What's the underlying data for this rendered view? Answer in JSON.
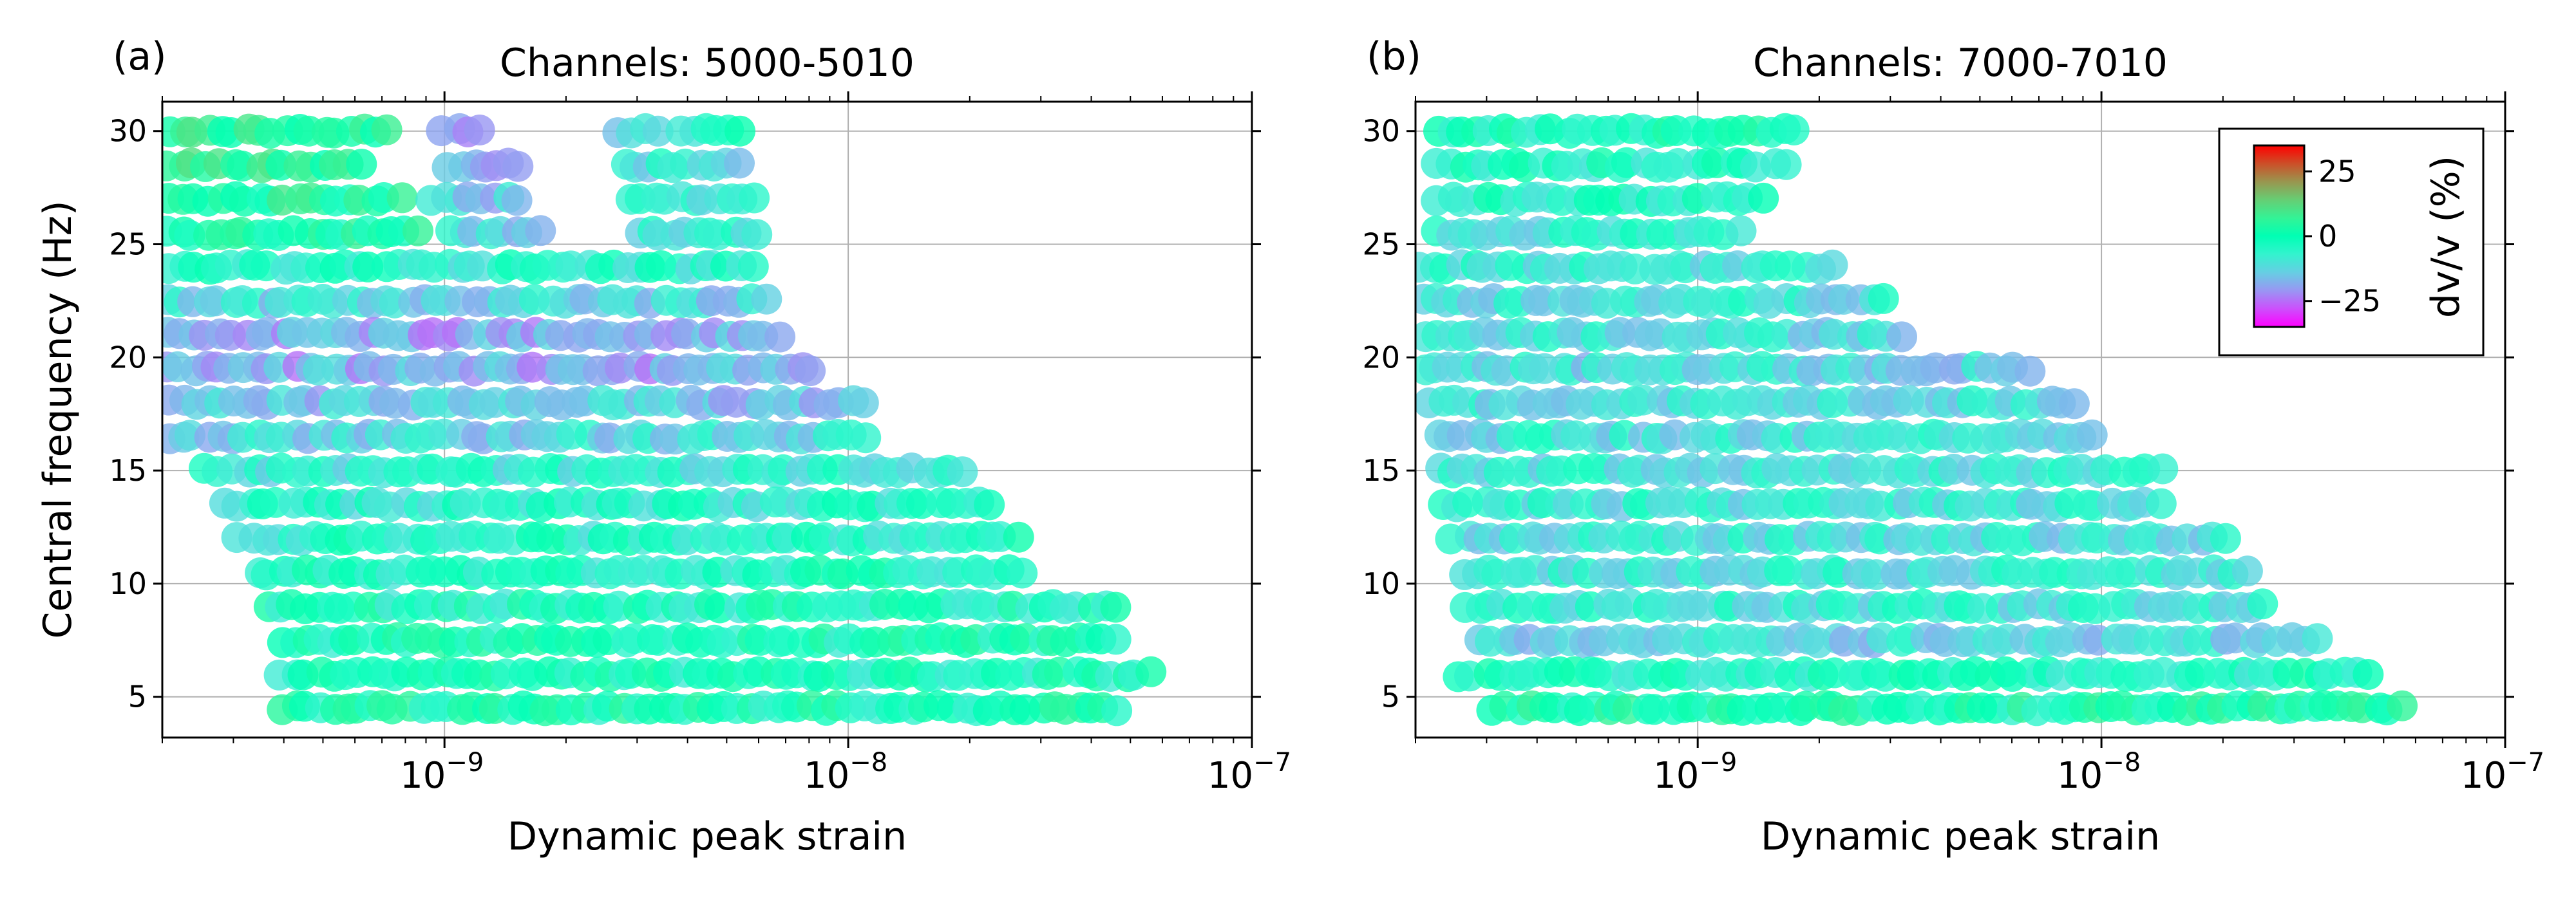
{
  "figure": {
    "colorbar": {
      "label": "dv/v (%)",
      "ticks": [
        25,
        0,
        -25
      ],
      "tick_labels": [
        "25",
        "0",
        "−25"
      ],
      "range": [
        -35,
        35
      ],
      "colormap": "rainbow"
    },
    "colors": {
      "grid": "#b0b0b0",
      "axes": "#000000"
    }
  },
  "chart_data": [
    {
      "type": "scatter",
      "panel_label": "(a)",
      "title": "Channels: 5000-5010",
      "xlabel": "Dynamic peak strain",
      "ylabel": "Central frequency (Hz)",
      "xscale": "log",
      "xlim": [
        2e-10,
        1e-07
      ],
      "ylim": [
        3.2,
        31.3
      ],
      "xticks": [
        1e-09,
        1e-08,
        1e-07
      ],
      "xtick_labels": [
        "10",
        "10",
        "10"
      ],
      "xtick_exponents": [
        "−9",
        "−8",
        "−7"
      ],
      "yticks": [
        5,
        10,
        15,
        20,
        25,
        30
      ],
      "ytick_labels": [
        "5",
        "10",
        "15",
        "20",
        "25",
        "30"
      ],
      "grid": true,
      "frequencies": [
        4.5,
        6.0,
        7.5,
        9.0,
        10.5,
        12.0,
        13.5,
        15.0,
        16.5,
        18.0,
        19.5,
        21.0,
        22.5,
        24.0,
        25.5,
        27.0,
        28.5,
        30.0
      ],
      "bands": [
        {
          "y": 30.0,
          "x_range": [
            2e-10,
            7.5e-10
          ],
          "dvv": 5
        },
        {
          "y": 30.0,
          "x_range": [
            9.5e-10,
            1.3e-09
          ],
          "dvv": -18
        },
        {
          "y": 30.0,
          "x_range": [
            2.6e-09,
            3.5e-09
          ],
          "dvv": -12
        },
        {
          "y": 30.0,
          "x_range": [
            3.7e-09,
            5.5e-09
          ],
          "dvv": -6
        },
        {
          "y": 28.5,
          "x_range": [
            2e-10,
            6.5e-10
          ],
          "dvv": 5
        },
        {
          "y": 28.5,
          "x_range": [
            1e-09,
            1.6e-09
          ],
          "dvv": -15
        },
        {
          "y": 28.5,
          "x_range": [
            2.7e-09,
            5.5e-09
          ],
          "dvv": -10
        },
        {
          "y": 27.0,
          "x_range": [
            2e-10,
            8e-10
          ],
          "dvv": 3
        },
        {
          "y": 27.0,
          "x_range": [
            9e-10,
            1.6e-09
          ],
          "dvv": -14
        },
        {
          "y": 27.0,
          "x_range": [
            2.8e-09,
            6e-09
          ],
          "dvv": -9
        },
        {
          "y": 25.5,
          "x_range": [
            2e-10,
            9e-10
          ],
          "dvv": 2
        },
        {
          "y": 25.5,
          "x_range": [
            1e-09,
            1.8e-09
          ],
          "dvv": -12
        },
        {
          "y": 25.5,
          "x_range": [
            2.9e-09,
            6.2e-09
          ],
          "dvv": -8
        },
        {
          "y": 24.0,
          "x_range": [
            2e-10,
            6e-09
          ],
          "dvv": -6
        },
        {
          "y": 22.5,
          "x_range": [
            2e-10,
            6.5e-09
          ],
          "dvv": -12
        },
        {
          "y": 21.0,
          "x_range": [
            2e-10,
            7e-09
          ],
          "dvv": -18
        },
        {
          "y": 19.5,
          "x_range": [
            2e-10,
            8.5e-09
          ],
          "dvv": -18
        },
        {
          "y": 18.0,
          "x_range": [
            2e-10,
            1.15e-08
          ],
          "dvv": -15
        },
        {
          "y": 16.5,
          "x_range": [
            2e-10,
            1.15e-08
          ],
          "dvv": -12
        },
        {
          "y": 15.0,
          "x_range": [
            2.5e-10,
            2e-08
          ],
          "dvv": -8
        },
        {
          "y": 13.5,
          "x_range": [
            2.8e-10,
            2.3e-08
          ],
          "dvv": -6
        },
        {
          "y": 12.0,
          "x_range": [
            3e-10,
            2.7e-08
          ],
          "dvv": -5
        },
        {
          "y": 10.5,
          "x_range": [
            3.3e-10,
            2.8e-08
          ],
          "dvv": -4
        },
        {
          "y": 9.0,
          "x_range": [
            3.5e-10,
            4.8e-08
          ],
          "dvv": -3
        },
        {
          "y": 7.5,
          "x_range": [
            3.8e-10,
            4.8e-08
          ],
          "dvv": -2
        },
        {
          "y": 6.0,
          "x_range": [
            3.8e-10,
            5.8e-08
          ],
          "dvv": -3
        },
        {
          "y": 4.5,
          "x_range": [
            3.8e-10,
            4.8e-08
          ],
          "dvv": -1
        }
      ]
    },
    {
      "type": "scatter",
      "panel_label": "(b)",
      "title": "Channels: 7000-7010",
      "xlabel": "Dynamic peak strain",
      "ylabel": "",
      "xscale": "log",
      "xlim": [
        2e-10,
        1e-07
      ],
      "ylim": [
        3.2,
        31.3
      ],
      "xticks": [
        1e-09,
        1e-08,
        1e-07
      ],
      "xtick_labels": [
        "10",
        "10",
        "10"
      ],
      "xtick_exponents": [
        "−9",
        "−8",
        "−7"
      ],
      "yticks": [
        5,
        10,
        15,
        20,
        25,
        30
      ],
      "ytick_labels": [
        "5",
        "10",
        "15",
        "20",
        "25",
        "30"
      ],
      "grid": true,
      "bands": [
        {
          "y": 30.0,
          "x_range": [
            2.2e-10,
            1.8e-09
          ],
          "dvv": -2
        },
        {
          "y": 28.5,
          "x_range": [
            2.2e-10,
            1.7e-09
          ],
          "dvv": -4
        },
        {
          "y": 27.0,
          "x_range": [
            2.2e-10,
            1.5e-09
          ],
          "dvv": -5
        },
        {
          "y": 25.5,
          "x_range": [
            2.2e-10,
            1.3e-09
          ],
          "dvv": -8
        },
        {
          "y": 24.0,
          "x_range": [
            2e-10,
            2.2e-09
          ],
          "dvv": -9
        },
        {
          "y": 22.5,
          "x_range": [
            2e-10,
            3e-09
          ],
          "dvv": -10
        },
        {
          "y": 21.0,
          "x_range": [
            2e-10,
            3.3e-09
          ],
          "dvv": -11
        },
        {
          "y": 19.5,
          "x_range": [
            2e-10,
            6.8e-09
          ],
          "dvv": -12
        },
        {
          "y": 18.0,
          "x_range": [
            2.1e-10,
            9e-09
          ],
          "dvv": -11
        },
        {
          "y": 16.5,
          "x_range": [
            2.2e-10,
            1e-08
          ],
          "dvv": -10
        },
        {
          "y": 15.0,
          "x_range": [
            2.2e-10,
            1.45e-08
          ],
          "dvv": -9
        },
        {
          "y": 13.5,
          "x_range": [
            2.3e-10,
            1.45e-08
          ],
          "dvv": -9
        },
        {
          "y": 12.0,
          "x_range": [
            2.4e-10,
            2.1e-08
          ],
          "dvv": -10
        },
        {
          "y": 10.5,
          "x_range": [
            2.5e-10,
            2.4e-08
          ],
          "dvv": -9
        },
        {
          "y": 9.0,
          "x_range": [
            2.6e-10,
            2.6e-08
          ],
          "dvv": -9
        },
        {
          "y": 7.5,
          "x_range": [
            2.8e-10,
            3.5e-08
          ],
          "dvv": -12
        },
        {
          "y": 6.0,
          "x_range": [
            2.5e-10,
            4.7e-08
          ],
          "dvv": -4
        },
        {
          "y": 4.5,
          "x_range": [
            3e-10,
            5.8e-08
          ],
          "dvv": 0
        }
      ]
    }
  ]
}
